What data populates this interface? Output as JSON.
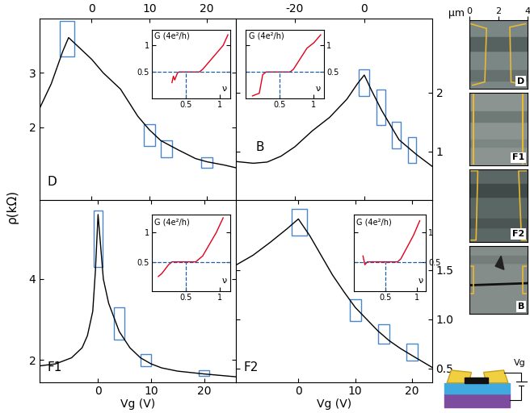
{
  "chart_data": [
    {
      "type": "line",
      "label": "D",
      "color": "#000000",
      "x": [
        -9,
        -7,
        -5,
        -4,
        -3,
        -2,
        0,
        2,
        5,
        8,
        10,
        12,
        15,
        18,
        20,
        23,
        25
      ],
      "values": [
        2.35,
        2.8,
        3.4,
        3.65,
        3.55,
        3.45,
        3.25,
        3.0,
        2.7,
        2.2,
        1.95,
        1.75,
        1.58,
        1.42,
        1.36,
        1.3,
        1.25
      ],
      "xlim": [
        -9,
        25
      ],
      "ylim": [
        0.65,
        4.0
      ],
      "xticks": [
        0,
        10,
        20
      ],
      "yticks": [
        2,
        3
      ],
      "highlights": {
        "color": "#4a86c8",
        "boxes": [
          {
            "x": [
              -5.5,
              -3
            ],
            "y": [
              3.3,
              3.95
            ]
          },
          {
            "x": [
              9,
              11
            ],
            "y": [
              1.65,
              2.05
            ]
          },
          {
            "x": [
              12,
              14
            ],
            "y": [
              1.45,
              1.75
            ]
          },
          {
            "x": [
              19,
              21
            ],
            "y": [
              1.25,
              1.45
            ]
          }
        ]
      },
      "inset": {
        "type": "line",
        "ylabel": "G (4e²/h)",
        "xlabel": "ν",
        "color": "#e3001b",
        "x": [
          0.3,
          0.32,
          0.34,
          0.38,
          0.4,
          0.7,
          0.75,
          0.85,
          0.95,
          1.05,
          1.12
        ],
        "values": [
          0.3,
          0.42,
          0.35,
          0.48,
          0.5,
          0.5,
          0.55,
          0.7,
          0.85,
          1.0,
          1.2
        ],
        "xlim": [
          0,
          1.15
        ],
        "ylim": [
          0,
          1.3
        ],
        "xticks": [
          0.5,
          1
        ],
        "yticks": [
          0.5,
          1
        ],
        "reference_lines": {
          "x": 0.5,
          "y": 0.5,
          "color": "#1f5fa0",
          "line_style": "dashed"
        }
      }
    },
    {
      "type": "line",
      "label": "B",
      "color": "#000000",
      "x": [
        -37,
        -32,
        -28,
        -24,
        -20,
        -15,
        -10,
        -5,
        -2,
        0,
        2,
        5,
        8,
        10,
        13,
        15,
        19.5
      ],
      "values": [
        0.83,
        0.8,
        0.82,
        0.92,
        1.08,
        1.35,
        1.58,
        1.89,
        2.15,
        2.3,
        2.05,
        1.7,
        1.4,
        1.2,
        1.05,
        0.95,
        0.75
      ],
      "xlim": [
        -37,
        19.5
      ],
      "ylim": [
        0.17,
        3.26
      ],
      "xticks": [
        -20,
        0
      ],
      "yticks": [
        1,
        2
      ],
      "highlights": {
        "color": "#4a86c8",
        "boxes": [
          {
            "x": [
              -1.5,
              1.5
            ],
            "y": [
              1.95,
              2.4
            ]
          },
          {
            "x": [
              3.5,
              6
            ],
            "y": [
              1.45,
              2.05
            ]
          },
          {
            "x": [
              8,
              10.5
            ],
            "y": [
              1.05,
              1.5
            ]
          },
          {
            "x": [
              12.5,
              15
            ],
            "y": [
              0.8,
              1.25
            ]
          }
        ]
      },
      "inset": {
        "type": "line",
        "ylabel": "G (4e²/h)",
        "xlabel": "ν",
        "color": "#e3001b",
        "x": [
          0.1,
          0.2,
          0.25,
          0.3,
          0.65,
          0.7,
          0.8,
          0.9,
          1.0,
          1.1
        ],
        "values": [
          0.05,
          0.1,
          0.45,
          0.5,
          0.5,
          0.55,
          0.75,
          0.95,
          1.05,
          1.2
        ],
        "xlim": [
          0,
          1.15
        ],
        "ylim": [
          0,
          1.3
        ],
        "xticks": [
          0.5,
          1
        ],
        "yticks": [
          0.5,
          1
        ],
        "reference_lines": {
          "x": 0.5,
          "y": 0.5,
          "color": "#1f5fa0",
          "line_style": "dashed"
        }
      }
    },
    {
      "type": "line",
      "label": "F1",
      "color": "#000000",
      "xlabel": "Vg (V)",
      "x": [
        -11,
        -8,
        -5,
        -3,
        -2,
        -1,
        -0.5,
        0,
        0.5,
        1,
        2,
        4,
        6,
        8,
        10,
        12,
        15,
        20,
        26
      ],
      "values": [
        1.85,
        1.9,
        2.05,
        2.3,
        2.6,
        3.2,
        4.2,
        5.6,
        4.8,
        4.0,
        3.4,
        2.7,
        2.3,
        2.05,
        1.9,
        1.8,
        1.72,
        1.65,
        1.58
      ],
      "xlim": [
        -11,
        26
      ],
      "ylim": [
        1.45,
        5.95
      ],
      "xticks": [
        0,
        10,
        20
      ],
      "yticks": [
        2,
        4
      ],
      "highlights": {
        "color": "#4a86c8",
        "boxes": [
          {
            "x": [
              -0.8,
              0.8
            ],
            "y": [
              4.3,
              5.7
            ]
          },
          {
            "x": [
              3,
              5
            ],
            "y": [
              2.5,
              3.3
            ]
          },
          {
            "x": [
              8,
              10
            ],
            "y": [
              1.85,
              2.15
            ]
          },
          {
            "x": [
              19,
              21
            ],
            "y": [
              1.6,
              1.75
            ]
          }
        ]
      },
      "inset": {
        "type": "line",
        "ylabel": "G (4e²/h)",
        "xlabel": "ν",
        "color": "#e3001b",
        "x": [
          0.1,
          0.15,
          0.25,
          0.3,
          0.65,
          0.75,
          0.85,
          0.95,
          1.05
        ],
        "values": [
          0.25,
          0.3,
          0.45,
          0.5,
          0.5,
          0.6,
          0.8,
          1.0,
          1.25
        ],
        "xlim": [
          0,
          1.15
        ],
        "ylim": [
          0,
          1.3
        ],
        "xticks": [
          0.5,
          1
        ],
        "yticks": [
          0.5,
          1
        ],
        "reference_lines": {
          "x": 0.5,
          "y": 0.5,
          "color": "#1f5fa0",
          "line_style": "dashed"
        }
      }
    },
    {
      "type": "line",
      "label": "F2",
      "color": "#000000",
      "xlabel": "Vg (V)",
      "x": [
        -11,
        -8,
        -5,
        -2,
        0,
        2,
        4,
        6,
        8,
        10,
        12,
        14,
        16,
        18,
        20,
        23.5
      ],
      "values": [
        1.55,
        1.65,
        1.78,
        1.92,
        2.02,
        1.85,
        1.65,
        1.45,
        1.28,
        1.12,
        1.0,
        0.88,
        0.78,
        0.7,
        0.63,
        0.51
      ],
      "xlim": [
        -11,
        23.5
      ],
      "ylim": [
        0.36,
        2.21
      ],
      "xticks": [
        0,
        10,
        20
      ],
      "yticks": [
        0.5,
        {
          "value": 1.0,
          "label": "1.0"
        },
        1.5
      ],
      "highlights": {
        "color": "#4a86c8",
        "boxes": [
          {
            "x": [
              -1.2,
              1.5
            ],
            "y": [
              1.85,
              2.12
            ]
          },
          {
            "x": [
              9,
              11
            ],
            "y": [
              0.98,
              1.2
            ]
          },
          {
            "x": [
              14,
              16
            ],
            "y": [
              0.75,
              0.95
            ]
          },
          {
            "x": [
              19,
              21
            ],
            "y": [
              0.58,
              0.75
            ]
          }
        ]
      },
      "inset": {
        "type": "line",
        "ylabel": "G (4e²/h)",
        "xlabel": "ν",
        "color": "#e3001b",
        "x": [
          0.15,
          0.18,
          0.22,
          0.7,
          0.75,
          0.85,
          0.95,
          1.05
        ],
        "values": [
          0.6,
          0.45,
          0.5,
          0.5,
          0.55,
          0.75,
          0.95,
          1.2
        ],
        "xlim": [
          0,
          1.15
        ],
        "ylim": [
          0,
          1.3
        ],
        "xticks": [
          0.5,
          1
        ],
        "yticks": [
          0.5,
          1
        ],
        "reference_lines": {
          "x": 0.5,
          "y": 0.5,
          "color": "#1f5fa0",
          "line_style": "dashed"
        }
      }
    }
  ],
  "ylabel": "ρ(kΩ)",
  "images": [
    {
      "label": "D",
      "xlabel": "μm",
      "xlim": [
        0,
        4
      ],
      "xticks": [
        0,
        2,
        4
      ]
    },
    {
      "label": "F1"
    },
    {
      "label": "F2"
    },
    {
      "label": "B"
    }
  ],
  "schematic": {
    "label": "Vg"
  }
}
